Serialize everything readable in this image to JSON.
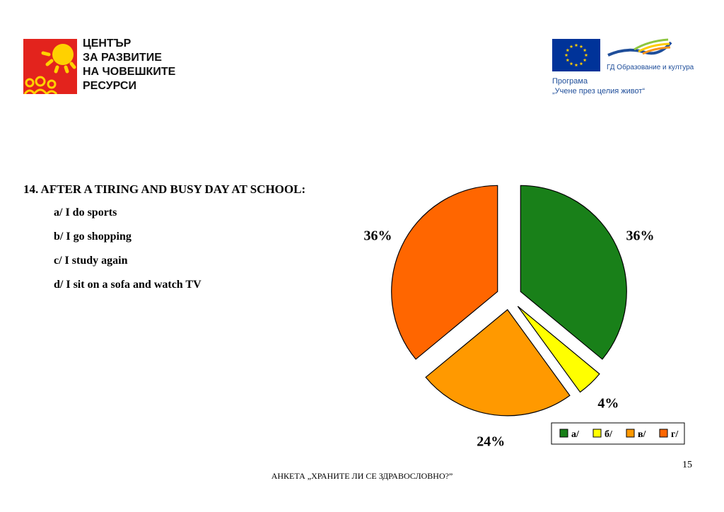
{
  "header": {
    "org_lines": [
      "ЦЕНТЪР",
      "ЗА РАЗВИТИЕ",
      "НА ЧОВЕШКИТЕ",
      "РЕСУРСИ"
    ],
    "eu_dept": "ГД Образование и култура",
    "program_lines": [
      "Програма",
      "„Учене през целия живот“"
    ]
  },
  "question": {
    "title": "14. AFTER A TIRING AND BUSY DAY AT SCHOOL:",
    "options": [
      "a/ I do sports",
      "b/ I go shopping",
      "c/ I study again",
      "d/ I sit on a sofa and watch TV"
    ]
  },
  "chart_data": {
    "type": "pie",
    "categories": [
      "а/",
      "б/",
      "в/",
      "г/"
    ],
    "values": [
      36,
      4,
      24,
      36
    ],
    "labels": [
      "36%",
      "4%",
      "24%",
      "36%"
    ],
    "colors": [
      "#198019",
      "#ffff00",
      "#ff9900",
      "#ff6600"
    ],
    "legend": "bottom-right"
  },
  "footer": {
    "survey_title": "АНКЕТА „ХРАНИТЕ ЛИ СЕ ЗДРАВОСЛОВНО?”",
    "page_number": "15"
  }
}
